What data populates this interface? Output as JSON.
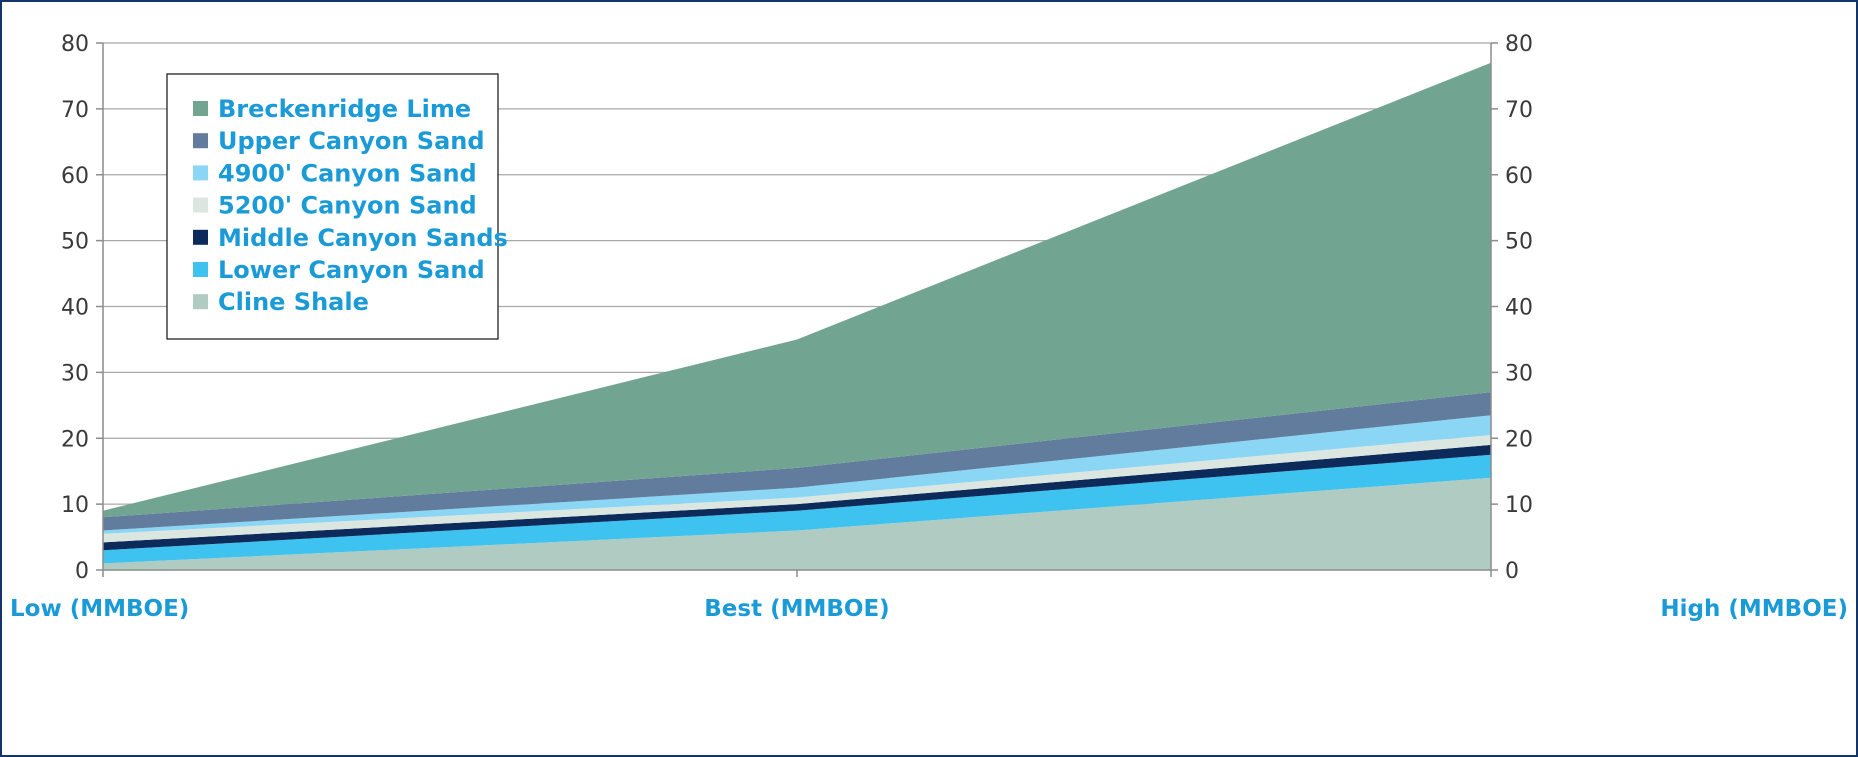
{
  "chart_data": {
    "type": "area",
    "stacked": true,
    "categories": [
      "Low (MMBOE)",
      "Best (MMBOE)",
      "High (MMBOE)"
    ],
    "ylim": [
      0,
      80
    ],
    "yticks": [
      0,
      10,
      20,
      30,
      40,
      50,
      60,
      70,
      80
    ],
    "dual_y_axis": true,
    "grid": true,
    "legend_position": "top-left",
    "series": [
      {
        "name": "Cline Shale",
        "values": [
          1,
          6,
          14
        ],
        "color": "#b0cbc2"
      },
      {
        "name": "Lower Canyon Sand",
        "values": [
          2,
          3,
          3.5
        ],
        "color": "#3ec3f0"
      },
      {
        "name": "Middle Canyon Sands",
        "values": [
          1.2,
          1,
          1.5
        ],
        "color": "#0c2b5a"
      },
      {
        "name": "5200' Canyon Sand",
        "values": [
          1.3,
          1,
          1.5
        ],
        "color": "#dbe6e1"
      },
      {
        "name": "4900' Canyon Sand",
        "values": [
          0.5,
          1.5,
          3
        ],
        "color": "#8ad6f4"
      },
      {
        "name": "Upper Canyon Sand",
        "values": [
          2,
          3,
          3.5
        ],
        "color": "#627c9e"
      },
      {
        "name": "Breckenridge Lime",
        "values": [
          1,
          19.5,
          50
        ],
        "color": "#72a492"
      }
    ]
  }
}
